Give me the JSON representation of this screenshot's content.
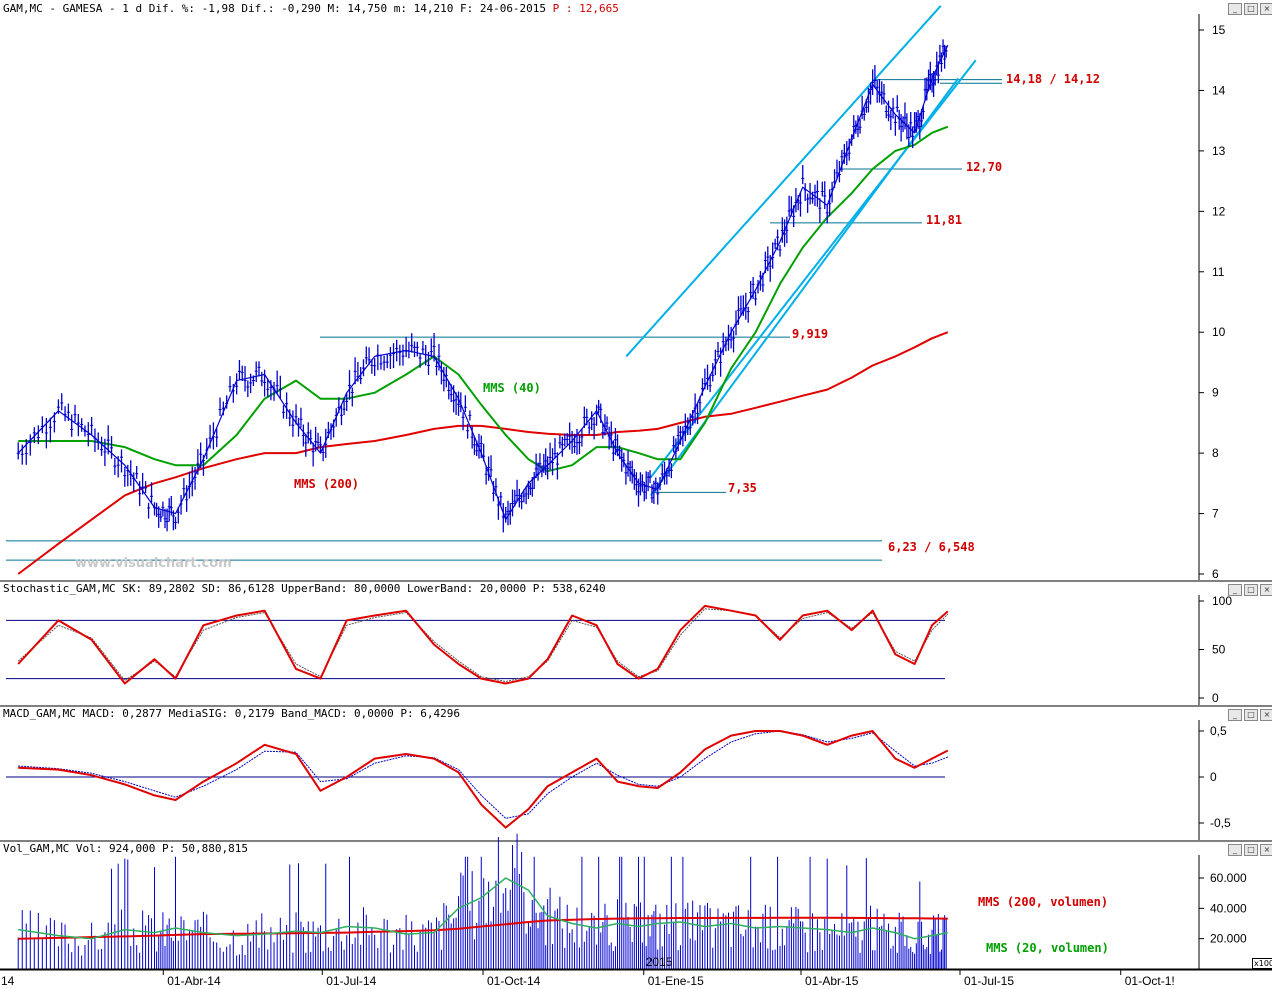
{
  "header": {
    "main_prefix": "GAM,MC - GAMESA -  1 d Dif. %: -1,98 Dif.: -0,290 M: 14,750 m: 14,210 F: 24-06-2015",
    "main_suffix": " P : 12,665",
    "stoch": "Stochastic_GAM,MC SK: 89,2802 SD: 86,6128 UpperBand: 80,0000 LowerBand: 20,0000 P: 538,6240",
    "macd": "MACD_GAM,MC MACD: 0,2877 MediaSIG: 0,2179 Band_MACD: 0,0000 P: 6,4296",
    "vol": "Vol_GAM,MC Vol: 924,000 P: 50,880,815"
  },
  "window_buttons": [
    "minimize-icon",
    "restore-icon",
    "close-icon"
  ],
  "watermark": "www.visualchart.com",
  "x100_label": "x100",
  "year_marker": "2015",
  "colors": {
    "price": "#0000d0",
    "mms40": "#00a000",
    "mms200": "#e00000",
    "channel": "#00b0e8",
    "level": "#007090",
    "annotation": "#d00000",
    "stoch_band": "#000080"
  },
  "annotations": {
    "a1": "14,18 / 14,12",
    "a2": "12,70",
    "a3": "11,81",
    "a4": "9,919",
    "a5": "7,35",
    "a6": "6,23 / 6,548",
    "mms40": "MMS (40)",
    "mms200": "MMS (200)",
    "vol200": "MMS (200, volumen)",
    "vol20": "MMS (20, volumen)"
  },
  "chart_data": [
    {
      "type": "line",
      "title": "GAM,MC - GAMESA - 1 d",
      "x": [
        "2014-01-08",
        "2014-01-31",
        "2014-02-19",
        "2014-03-10",
        "2014-03-27",
        "2014-04-08",
        "2014-04-24",
        "2014-05-13",
        "2014-05-29",
        "2014-06-16",
        "2014-06-30",
        "2014-07-15",
        "2014-07-31",
        "2014-08-18",
        "2014-09-03",
        "2014-09-17",
        "2014-09-30",
        "2014-10-14",
        "2014-10-27",
        "2014-11-07",
        "2014-11-21",
        "2014-12-05",
        "2014-12-17",
        "2014-12-29",
        "2015-01-09",
        "2015-01-22",
        "2015-02-05",
        "2015-02-20",
        "2015-03-06",
        "2015-03-20",
        "2015-04-02",
        "2015-04-16",
        "2015-04-30",
        "2015-05-12",
        "2015-05-25",
        "2015-06-05",
        "2015-06-15",
        "2015-06-24"
      ],
      "series": [
        {
          "name": "Price",
          "values": [
            8.0,
            8.7,
            8.3,
            7.8,
            7.1,
            7.0,
            7.9,
            9.2,
            9.3,
            8.5,
            8.0,
            9.0,
            9.6,
            9.7,
            9.6,
            8.9,
            8.0,
            6.9,
            7.5,
            7.8,
            8.2,
            8.7,
            8.0,
            7.5,
            7.4,
            8.2,
            9.1,
            10.0,
            10.7,
            11.5,
            12.4,
            12.1,
            13.2,
            14.1,
            13.6,
            13.3,
            14.2,
            14.75
          ]
        },
        {
          "name": "MMS (40)",
          "values": [
            8.2,
            8.2,
            8.2,
            8.1,
            7.9,
            7.8,
            7.8,
            8.3,
            8.9,
            9.2,
            8.9,
            8.9,
            9.0,
            9.3,
            9.6,
            9.3,
            8.8,
            8.3,
            7.9,
            7.7,
            7.8,
            8.1,
            8.1,
            8.0,
            7.9,
            7.9,
            8.5,
            9.4,
            10.0,
            10.8,
            11.4,
            11.9,
            12.3,
            12.7,
            13.0,
            13.1,
            13.3,
            13.4
          ]
        },
        {
          "name": "MMS (200)",
          "values": [
            6.0,
            6.5,
            6.9,
            7.3,
            7.5,
            7.6,
            7.75,
            7.9,
            8.0,
            8.0,
            8.1,
            8.15,
            8.2,
            8.3,
            8.4,
            8.45,
            8.45,
            8.4,
            8.35,
            8.32,
            8.3,
            8.3,
            8.35,
            8.37,
            8.4,
            8.5,
            8.6,
            8.65,
            8.75,
            8.85,
            8.95,
            9.05,
            9.25,
            9.45,
            9.6,
            9.75,
            9.9,
            10.0
          ]
        }
      ],
      "ylim": [
        6,
        15
      ],
      "yticks": [
        "6",
        "7",
        "8",
        "9",
        "10",
        "11",
        "12",
        "13",
        "14",
        "15"
      ],
      "xtick_labels": [
        "14",
        "01-Abr-14",
        "01-Jul-14",
        "01-Oct-14",
        "01-Ene-15",
        "01-Abr-15",
        "01-Jul-15",
        "01-Oct-1!"
      ],
      "levels": [
        14.18,
        14.12,
        12.7,
        11.81,
        9.919,
        7.35,
        6.23,
        6.548
      ],
      "channel_lines": [
        {
          "from": [
            "2014-12-22",
            9.6
          ],
          "to": [
            "2015-06-20",
            15.4
          ]
        },
        {
          "from": [
            "2015-01-05",
            7.3
          ],
          "to": [
            "2015-06-30",
            14.2
          ]
        },
        {
          "from": [
            "2015-01-05",
            7.6
          ],
          "to": [
            "2015-07-10",
            14.5
          ]
        }
      ]
    },
    {
      "type": "line",
      "title": "Stochastic_GAM,MC",
      "ylim": [
        0,
        100
      ],
      "yticks": [
        "0",
        "50",
        "100"
      ],
      "bands": [
        20,
        80
      ],
      "series": [
        {
          "name": "SK",
          "values": [
            35,
            80,
            60,
            15,
            40,
            20,
            75,
            85,
            90,
            30,
            20,
            80,
            85,
            90,
            55,
            35,
            20,
            15,
            20,
            40,
            85,
            75,
            35,
            20,
            30,
            70,
            95,
            90,
            85,
            60,
            85,
            90,
            70,
            90,
            45,
            35,
            75,
            89.28
          ]
        },
        {
          "name": "SD",
          "values": [
            38,
            75,
            62,
            18,
            38,
            22,
            70,
            83,
            88,
            35,
            22,
            75,
            83,
            88,
            58,
            38,
            22,
            17,
            22,
            38,
            80,
            73,
            38,
            22,
            28,
            65,
            92,
            90,
            85,
            62,
            82,
            88,
            72,
            88,
            48,
            38,
            70,
            86.61
          ]
        }
      ]
    },
    {
      "type": "line",
      "title": "MACD_GAM,MC",
      "ylim": [
        -0.6,
        0.6
      ],
      "yticks": [
        "-0,5",
        "0",
        "0,5"
      ],
      "series": [
        {
          "name": "MACD",
          "values": [
            0.1,
            0.08,
            0.02,
            -0.08,
            -0.2,
            -0.25,
            -0.05,
            0.15,
            0.35,
            0.25,
            -0.15,
            0.0,
            0.2,
            0.25,
            0.2,
            0.05,
            -0.3,
            -0.55,
            -0.35,
            -0.1,
            0.05,
            0.2,
            -0.05,
            -0.1,
            -0.12,
            0.05,
            0.3,
            0.45,
            0.5,
            0.5,
            0.45,
            0.35,
            0.45,
            0.5,
            0.2,
            0.1,
            0.2,
            0.2877
          ]
        },
        {
          "name": "MediaSIG",
          "values": [
            0.12,
            0.09,
            0.04,
            -0.05,
            -0.15,
            -0.22,
            -0.1,
            0.08,
            0.28,
            0.27,
            -0.05,
            -0.02,
            0.15,
            0.23,
            0.21,
            0.08,
            -0.2,
            -0.45,
            -0.4,
            -0.18,
            0.0,
            0.15,
            0.02,
            -0.08,
            -0.1,
            0.0,
            0.2,
            0.38,
            0.47,
            0.5,
            0.46,
            0.38,
            0.42,
            0.48,
            0.28,
            0.12,
            0.15,
            0.2179
          ]
        }
      ]
    },
    {
      "type": "bar",
      "title": "Vol_GAM,MC",
      "ylim": [
        0,
        75000
      ],
      "yticks": [
        "20.000",
        "40.000",
        "60.000"
      ],
      "series": [
        {
          "name": "MMS (20, volumen)",
          "values": [
            26000,
            22000,
            20000,
            26000,
            24000,
            27000,
            24000,
            22000,
            23000,
            25000,
            24000,
            28000,
            27000,
            23000,
            24000,
            40000,
            47000,
            60000,
            52000,
            35000,
            30000,
            27000,
            30000,
            28000,
            30000,
            31000,
            28000,
            30000,
            27000,
            28000,
            27000,
            26000,
            24000,
            27000,
            24000,
            20000,
            22000,
            24000
          ]
        },
        {
          "name": "MMS (200, volumen)",
          "values": [
            20000,
            20500,
            21000,
            21500,
            22000,
            22500,
            23000,
            23200,
            23400,
            23600,
            23800,
            24000,
            24500,
            25000,
            25500,
            26500,
            28000,
            29500,
            31000,
            32000,
            32500,
            33000,
            33200,
            33400,
            33500,
            33600,
            33600,
            33700,
            33700,
            33800,
            33800,
            33800,
            33700,
            33600,
            33500,
            33400,
            33300,
            33200
          ]
        }
      ]
    }
  ]
}
